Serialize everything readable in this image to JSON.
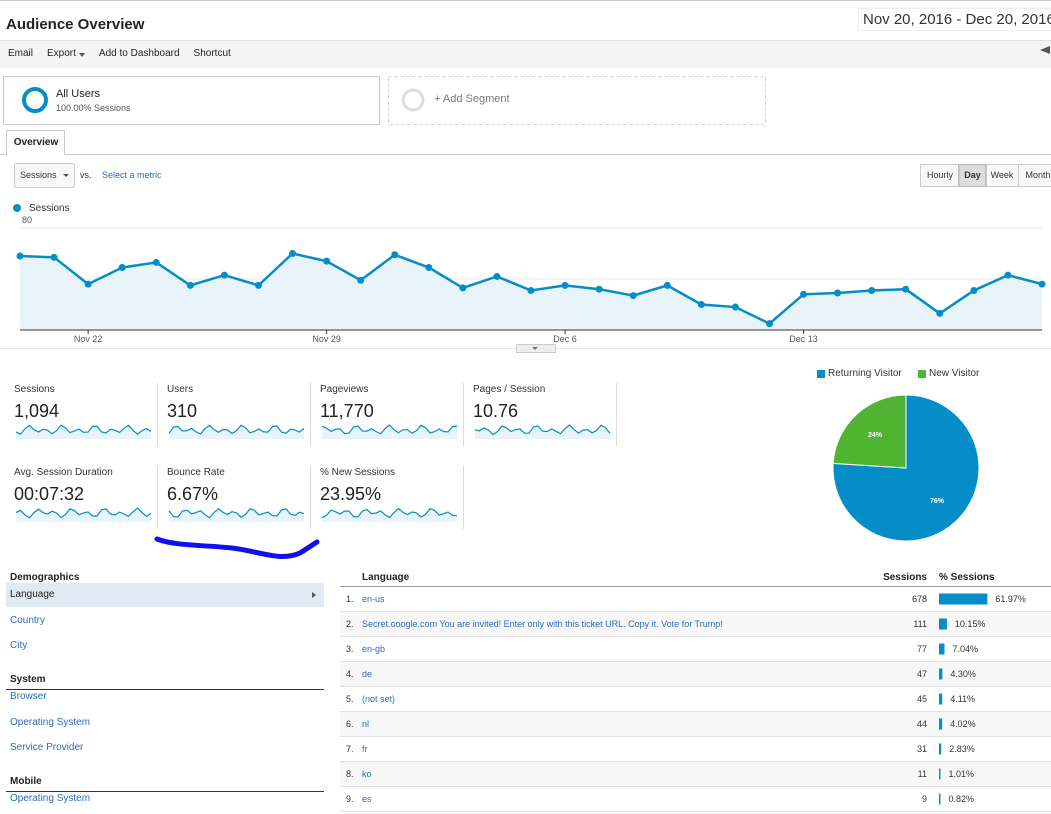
{
  "header": {
    "title": "Audience Overview",
    "date_range": "Nov 20, 2016 - Dec 20, 2016"
  },
  "toolbar": [
    "Email",
    "Export",
    "Add to Dashboard",
    "Shortcut"
  ],
  "segments": {
    "active": {
      "name": "All Users",
      "detail": "100.00% Sessions"
    },
    "add": "+ Add Segment"
  },
  "tabs": [
    "Overview"
  ],
  "controls": {
    "metric": "Sessions",
    "vs": "vs.",
    "compare": "Select a metric",
    "granularity": [
      "Hourly",
      "Day",
      "Week",
      "Month"
    ]
  },
  "chart_data": [
    {
      "type": "line",
      "categories": [
        null,
        null,
        "Nov 22",
        null,
        null,
        null,
        null,
        null,
        null,
        "Nov 29",
        null,
        null,
        null,
        null,
        null,
        null,
        "Dec 6",
        null,
        null,
        null,
        null,
        null,
        null,
        "Dec 13",
        null,
        null,
        null,
        null,
        null,
        null,
        null
      ],
      "series": [
        {
          "name": "Sessions",
          "color": "#058dc7",
          "values": [
            58,
            57,
            36,
            49,
            53,
            35,
            43,
            35,
            60,
            54,
            39,
            59,
            49,
            33,
            42,
            31,
            35,
            32,
            27,
            35,
            20,
            18,
            5,
            28,
            29,
            31,
            32,
            13,
            31,
            43,
            36
          ]
        }
      ],
      "ylim": [
        0,
        80
      ],
      "yticks": [
        40,
        80
      ],
      "grid": true
    },
    {
      "type": "pie",
      "categories": [
        "Returning Visitor",
        "New Visitor"
      ],
      "values": [
        76,
        24
      ],
      "value_labels": [
        "76%",
        "24%"
      ],
      "colors": [
        "#058dc7",
        "#50b432"
      ]
    }
  ],
  "kpis": [
    {
      "name": "Sessions",
      "value": "1,094"
    },
    {
      "name": "Users",
      "value": "310"
    },
    {
      "name": "Pageviews",
      "value": "11,770"
    },
    {
      "name": "Pages / Session",
      "value": "10.76"
    },
    {
      "name": "Avg. Session Duration",
      "value": "00:07:32"
    },
    {
      "name": "Bounce Rate",
      "value": "6.67%"
    },
    {
      "name": "% New Sessions",
      "value": "23.95%"
    }
  ],
  "demographics": {
    "sections": [
      {
        "title": "Demographics",
        "items": [
          "Language",
          "Country",
          "City"
        ]
      },
      {
        "title": "System",
        "items": [
          "Browser",
          "Operating System",
          "Service Provider"
        ]
      },
      {
        "title": "Mobile",
        "items": [
          "Operating System"
        ]
      }
    ]
  },
  "table": {
    "columns": [
      "Language",
      "Sessions",
      "% Sessions"
    ],
    "rows": [
      {
        "rank": "1.",
        "name": "en-us",
        "sessions": 678,
        "share": 61.97,
        "share_label": "61.97%"
      },
      {
        "rank": "2.",
        "name": "Secret.ɢoogle.com You are invited! Enter only with this ticket URL. Copy it. Vote for Trump!",
        "sessions": 111,
        "share": 10.15,
        "share_label": "10.15%"
      },
      {
        "rank": "3.",
        "name": "en-gb",
        "sessions": 77,
        "share": 7.04,
        "share_label": "7.04%"
      },
      {
        "rank": "4.",
        "name": "de",
        "sessions": 47,
        "share": 4.3,
        "share_label": "4.30%"
      },
      {
        "rank": "5.",
        "name": "(not set)",
        "sessions": 45,
        "share": 4.11,
        "share_label": "4.11%"
      },
      {
        "rank": "6.",
        "name": "nl",
        "sessions": 44,
        "share": 4.02,
        "share_label": "4.02%"
      },
      {
        "rank": "7.",
        "name": "fr",
        "sessions": 31,
        "share": 2.83,
        "share_label": "2.83%"
      },
      {
        "rank": "8.",
        "name": "ko",
        "sessions": 11,
        "share": 1.01,
        "share_label": "1.01%"
      },
      {
        "rank": "9.",
        "name": "es",
        "sessions": 9,
        "share": 0.82,
        "share_label": "0.82%"
      }
    ]
  }
}
